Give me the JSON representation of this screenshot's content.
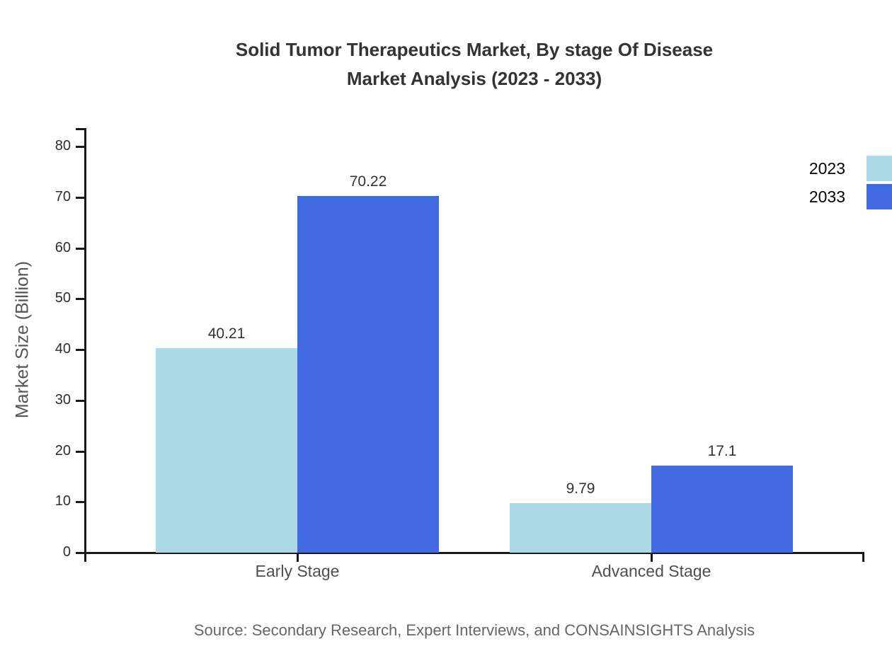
{
  "title": {
    "line1": "Solid Tumor Therapeutics Market, By stage Of Disease",
    "line2": "Market Analysis (2023 - 2033)"
  },
  "source": "Source: Secondary Research, Expert Interviews, and CONSAINSIGHTS Analysis",
  "chart_data": {
    "type": "bar",
    "categories": [
      "Early Stage",
      "Advanced Stage"
    ],
    "series": [
      {
        "name": "2023",
        "color": "#ADD8E6",
        "values": [
          40.21,
          9.79
        ]
      },
      {
        "name": "2033",
        "color": "#4169E1",
        "values": [
          70.22,
          17.1
        ]
      }
    ],
    "title": "Solid Tumor Therapeutics Market, By stage Of Disease Market Analysis (2023 - 2033)",
    "xlabel": "",
    "ylabel": "Market Size (Billion)",
    "yticks": [
      0,
      10,
      20,
      30,
      40,
      50,
      60,
      70,
      80
    ],
    "ylim": [
      0,
      84
    ],
    "grid": false,
    "legend_position": "top-right",
    "value_label_format": "plain"
  }
}
